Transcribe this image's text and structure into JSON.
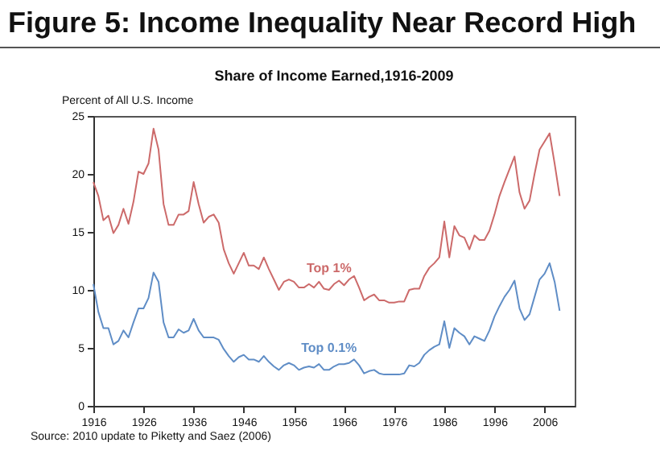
{
  "chart_data": {
    "type": "line",
    "title": "Figure 5: Income Inequality Near Record High",
    "subtitle": "Share of Income Earned,1916-2009",
    "ylabel": "Percent of All U.S. Income",
    "x": [
      1916,
      1917,
      1918,
      1919,
      1920,
      1921,
      1922,
      1923,
      1924,
      1925,
      1926,
      1927,
      1928,
      1929,
      1930,
      1931,
      1932,
      1933,
      1934,
      1935,
      1936,
      1937,
      1938,
      1939,
      1940,
      1941,
      1942,
      1943,
      1944,
      1945,
      1946,
      1947,
      1948,
      1949,
      1950,
      1951,
      1952,
      1953,
      1954,
      1955,
      1956,
      1957,
      1958,
      1959,
      1960,
      1961,
      1962,
      1963,
      1964,
      1965,
      1966,
      1967,
      1968,
      1969,
      1970,
      1971,
      1972,
      1973,
      1974,
      1975,
      1976,
      1977,
      1978,
      1979,
      1980,
      1981,
      1982,
      1983,
      1984,
      1985,
      1986,
      1987,
      1988,
      1989,
      1990,
      1991,
      1992,
      1993,
      1994,
      1995,
      1996,
      1997,
      1998,
      1999,
      2000,
      2001,
      2002,
      2003,
      2004,
      2005,
      2006,
      2007,
      2008,
      2009
    ],
    "series": [
      {
        "name": "Top 1%",
        "color": "#cc6a6a",
        "values": [
          19.3,
          18.1,
          16.0,
          16.4,
          14.9,
          15.6,
          17.0,
          15.7,
          17.6,
          20.2,
          20.0,
          20.9,
          23.9,
          22.1,
          17.4,
          15.6,
          15.6,
          16.5,
          16.5,
          16.8,
          19.3,
          17.4,
          15.8,
          16.3,
          16.5,
          15.8,
          13.5,
          12.3,
          11.4,
          12.3,
          13.2,
          12.1,
          12.1,
          11.8,
          12.8,
          11.8,
          10.9,
          10.0,
          10.7,
          10.9,
          10.7,
          10.2,
          10.2,
          10.5,
          10.2,
          10.7,
          10.1,
          10.0,
          10.5,
          10.8,
          10.4,
          10.9,
          11.2,
          10.2,
          9.1,
          9.4,
          9.6,
          9.1,
          9.1,
          8.9,
          8.9,
          9.0,
          9.0,
          10.0,
          10.1,
          10.1,
          11.2,
          11.9,
          12.3,
          12.8,
          15.9,
          12.8,
          15.5,
          14.7,
          14.5,
          13.5,
          14.7,
          14.3,
          14.3,
          15.1,
          16.5,
          18.1,
          19.3,
          20.4,
          21.5,
          18.4,
          17.0,
          17.7,
          20.0,
          22.1,
          22.8,
          23.5,
          20.9,
          18.1
        ]
      },
      {
        "name": "Top 0.1%",
        "color": "#5f8dc6",
        "values": [
          10.5,
          8.1,
          6.7,
          6.7,
          5.3,
          5.6,
          6.5,
          5.9,
          7.2,
          8.4,
          8.4,
          9.3,
          11.5,
          10.7,
          7.2,
          5.9,
          5.9,
          6.6,
          6.3,
          6.5,
          7.5,
          6.5,
          5.9,
          5.9,
          5.9,
          5.7,
          4.9,
          4.3,
          3.8,
          4.2,
          4.4,
          4.0,
          4.0,
          3.8,
          4.3,
          3.8,
          3.4,
          3.1,
          3.5,
          3.7,
          3.5,
          3.1,
          3.3,
          3.4,
          3.3,
          3.6,
          3.1,
          3.1,
          3.4,
          3.6,
          3.6,
          3.7,
          4.0,
          3.5,
          2.8,
          3.0,
          3.1,
          2.8,
          2.7,
          2.7,
          2.7,
          2.7,
          2.8,
          3.5,
          3.4,
          3.7,
          4.4,
          4.8,
          5.1,
          5.3,
          7.3,
          5.0,
          6.7,
          6.3,
          6.0,
          5.3,
          6.0,
          5.8,
          5.6,
          6.5,
          7.7,
          8.6,
          9.4,
          10.0,
          10.8,
          8.4,
          7.4,
          7.9,
          9.4,
          10.9,
          11.4,
          12.3,
          10.7,
          8.2
        ]
      }
    ],
    "xlim": [
      1916,
      2012
    ],
    "xticks": [
      1916,
      1926,
      1936,
      1946,
      1956,
      1966,
      1976,
      1986,
      1996,
      2006
    ],
    "ylim": [
      0,
      25
    ],
    "yticks": [
      0,
      5,
      10,
      15,
      20,
      25
    ],
    "annotations": [
      "Source: 2010 update to Piketty and Saez (2006)"
    ]
  }
}
